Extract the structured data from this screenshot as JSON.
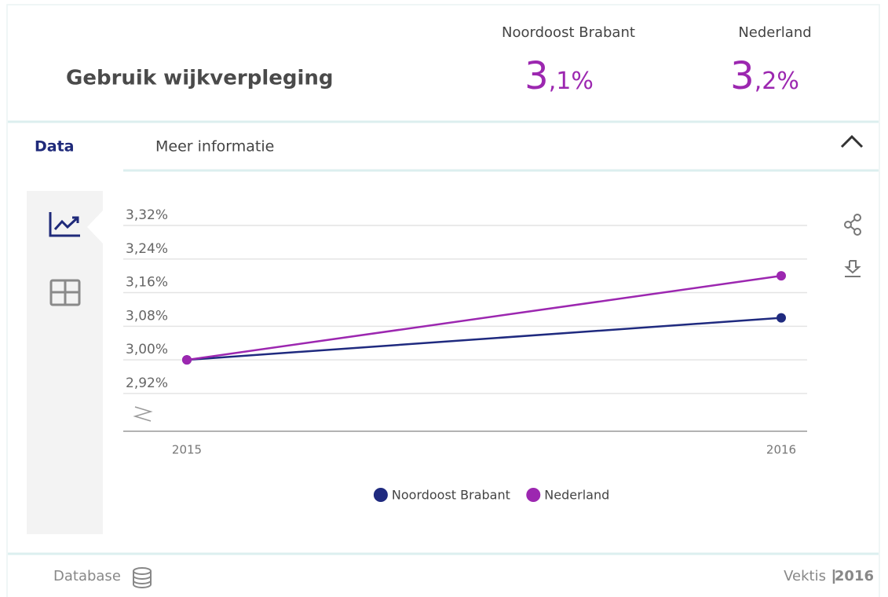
{
  "header": {
    "title": "Gebruik wijkverpleging",
    "kpis": [
      {
        "label": "Noordoost Brabant",
        "value_major": "3",
        "value_minor": ",1%"
      },
      {
        "label": "Nederland",
        "value_major": "3",
        "value_minor": ",2%"
      }
    ]
  },
  "tabs": [
    "Data",
    "Meer informatie"
  ],
  "chart_data": {
    "type": "line",
    "categories": [
      "2015",
      "2016"
    ],
    "series": [
      {
        "name": "Noordoost Brabant",
        "color": "#1f2a7f",
        "values": [
          3.0,
          3.1
        ]
      },
      {
        "name": "Nederland",
        "color": "#9c27b0",
        "values": [
          3.0,
          3.2
        ]
      }
    ],
    "ylim": [
      2.83,
      3.32
    ],
    "yticks": [
      {
        "value": 2.92,
        "label": "2,92%"
      },
      {
        "value": 3.0,
        "label": "3,00%"
      },
      {
        "value": 3.08,
        "label": "3,08%"
      },
      {
        "value": 3.16,
        "label": "3,16%"
      },
      {
        "value": 3.24,
        "label": "3,24%"
      },
      {
        "value": 3.32,
        "label": "3,32%"
      }
    ],
    "grid": true,
    "legend": "bottom"
  },
  "footer": {
    "database": "Database",
    "source": "Vektis",
    "year": "2016"
  }
}
